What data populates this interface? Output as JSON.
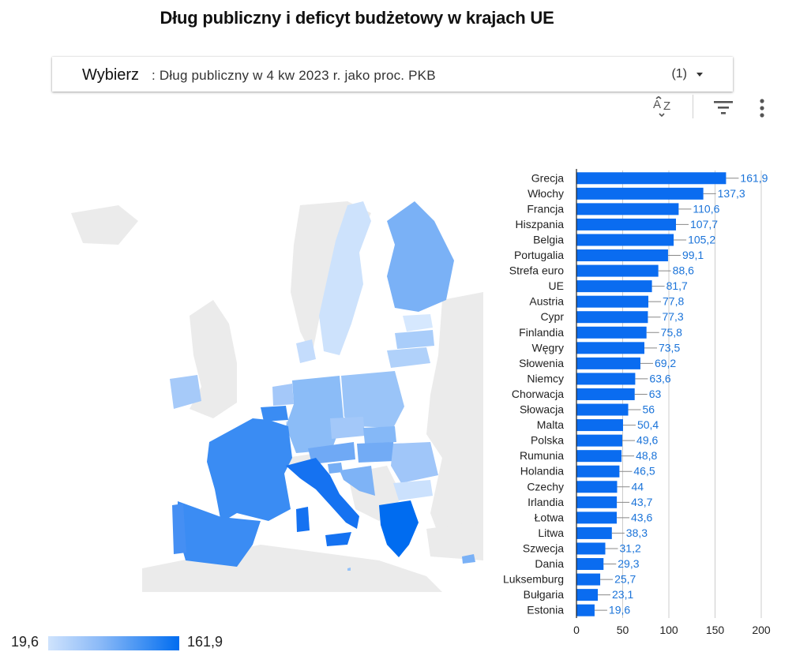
{
  "title": "Dług publiczny i deficyt budżetowy w krajach UE",
  "selector": {
    "label": "Wybierz",
    "value": ": Dług publiczny w 4 kw 2023 r. jako proc. PKB",
    "count": "(1)"
  },
  "toolbar": {
    "sort_icon": "sort-az-icon",
    "filter_icon": "filter-icon",
    "more_icon": "more-vert-icon"
  },
  "legend": {
    "min": "19,6",
    "max": "161,9"
  },
  "colors": {
    "bar": "#0a6cf0",
    "label": "#1a73d9",
    "map_gray": "#ebebeb",
    "map_light": "#cfe3fd",
    "map_dark": "#006cf0"
  },
  "chart_data": {
    "type": "bar",
    "orientation": "horizontal",
    "categories": [
      "Grecja",
      "Włochy",
      "Francja",
      "Hiszpania",
      "Belgia",
      "Portugalia",
      "Strefa euro",
      "UE",
      "Austria",
      "Cypr",
      "Finlandia",
      "Węgry",
      "Słowenia",
      "Niemcy",
      "Chorwacja",
      "Słowacja",
      "Malta",
      "Polska",
      "Rumunia",
      "Holandia",
      "Czechy",
      "Irlandia",
      "Łotwa",
      "Litwa",
      "Szwecja",
      "Dania",
      "Luksemburg",
      "Bułgaria",
      "Estonia"
    ],
    "values": [
      161.9,
      137.3,
      110.6,
      107.7,
      105.2,
      99.1,
      88.6,
      81.7,
      77.8,
      77.3,
      75.8,
      73.5,
      69.2,
      63.6,
      63,
      56,
      50.4,
      49.6,
      48.8,
      46.5,
      44,
      43.7,
      43.6,
      38.3,
      31.2,
      29.3,
      25.7,
      23.1,
      19.6
    ],
    "value_labels": [
      "161,9",
      "137,3",
      "110,6",
      "107,7",
      "105,2",
      "99,1",
      "88,6",
      "81,7",
      "77,8",
      "77,3",
      "75,8",
      "73,5",
      "69,2",
      "63,6",
      "63",
      "56",
      "50,4",
      "49,6",
      "48,8",
      "46,5",
      "44",
      "43,7",
      "43,6",
      "38,3",
      "31,2",
      "29,3",
      "25,7",
      "23,1",
      "19,6"
    ],
    "xlim": [
      0,
      200
    ],
    "xticks": [
      0,
      50,
      100,
      150,
      200
    ],
    "xtick_labels": [
      "0",
      "50",
      "100",
      "150",
      "200"
    ],
    "grid": true,
    "title": "",
    "xlabel": "",
    "ylabel": ""
  },
  "map_data": {
    "type": "choropleth",
    "regions": [
      {
        "name": "Grecja",
        "value": 161.9
      },
      {
        "name": "Włochy",
        "value": 137.3
      },
      {
        "name": "Francja",
        "value": 110.6
      },
      {
        "name": "Hiszpania",
        "value": 107.7
      },
      {
        "name": "Belgia",
        "value": 105.2
      },
      {
        "name": "Portugalia",
        "value": 99.1
      },
      {
        "name": "Austria",
        "value": 77.8
      },
      {
        "name": "Cypr",
        "value": 77.3
      },
      {
        "name": "Finlandia",
        "value": 75.8
      },
      {
        "name": "Węgry",
        "value": 73.5
      },
      {
        "name": "Słowenia",
        "value": 69.2
      },
      {
        "name": "Niemcy",
        "value": 63.6
      },
      {
        "name": "Chorwacja",
        "value": 63
      },
      {
        "name": "Słowacja",
        "value": 56
      },
      {
        "name": "Malta",
        "value": 50.4
      },
      {
        "name": "Polska",
        "value": 49.6
      },
      {
        "name": "Rumunia",
        "value": 48.8
      },
      {
        "name": "Holandia",
        "value": 46.5
      },
      {
        "name": "Czechy",
        "value": 44
      },
      {
        "name": "Irlandia",
        "value": 43.7
      },
      {
        "name": "Łotwa",
        "value": 43.6
      },
      {
        "name": "Litwa",
        "value": 38.3
      },
      {
        "name": "Szwecja",
        "value": 31.2
      },
      {
        "name": "Dania",
        "value": 29.3
      },
      {
        "name": "Luksemburg",
        "value": 25.7
      },
      {
        "name": "Bułgaria",
        "value": 23.1
      },
      {
        "name": "Estonia",
        "value": 19.6
      }
    ]
  }
}
